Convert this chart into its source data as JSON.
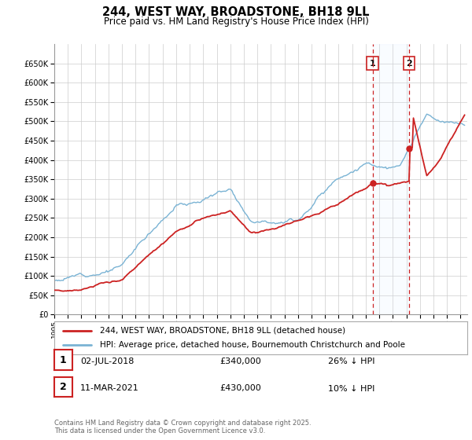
{
  "title": "244, WEST WAY, BROADSTONE, BH18 9LL",
  "subtitle": "Price paid vs. HM Land Registry's House Price Index (HPI)",
  "ylim": [
    0,
    700000
  ],
  "yticks": [
    0,
    50000,
    100000,
    150000,
    200000,
    250000,
    300000,
    350000,
    400000,
    450000,
    500000,
    550000,
    600000,
    650000
  ],
  "xlim_start": 1995.0,
  "xlim_end": 2025.5,
  "hpi_color": "#7ab3d4",
  "price_color": "#cc2222",
  "vline_color": "#cc2222",
  "vline1_x": 2018.5,
  "vline2_x": 2021.2,
  "highlight_color": "#ddeeff",
  "legend_line1": "244, WEST WAY, BROADSTONE, BH18 9LL (detached house)",
  "legend_line2": "HPI: Average price, detached house, Bournemouth Christchurch and Poole",
  "table_row1_num": "1",
  "table_row1_date": "02-JUL-2018",
  "table_row1_price": "£340,000",
  "table_row1_hpi": "26% ↓ HPI",
  "table_row2_num": "2",
  "table_row2_date": "11-MAR-2021",
  "table_row2_price": "£430,000",
  "table_row2_hpi": "10% ↓ HPI",
  "footnote": "Contains HM Land Registry data © Crown copyright and database right 2025.\nThis data is licensed under the Open Government Licence v3.0.",
  "background_color": "#ffffff",
  "grid_color": "#cccccc"
}
